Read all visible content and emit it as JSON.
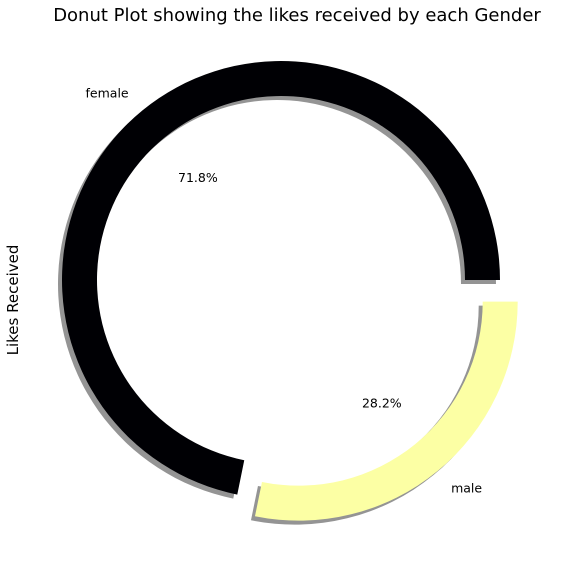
{
  "chart_data": {
    "type": "pie",
    "variant": "donut",
    "title": "Donut Plot showing the likes received by each Gender",
    "ylabel": "Likes Received",
    "categories": [
      "female",
      "male"
    ],
    "values": [
      71.8,
      28.2
    ],
    "percent_labels": [
      "71.8%",
      "28.2%"
    ],
    "colors": [
      "#000004",
      "#fcffa4"
    ],
    "shadow": true,
    "explode": [
      "none",
      "male"
    ]
  }
}
